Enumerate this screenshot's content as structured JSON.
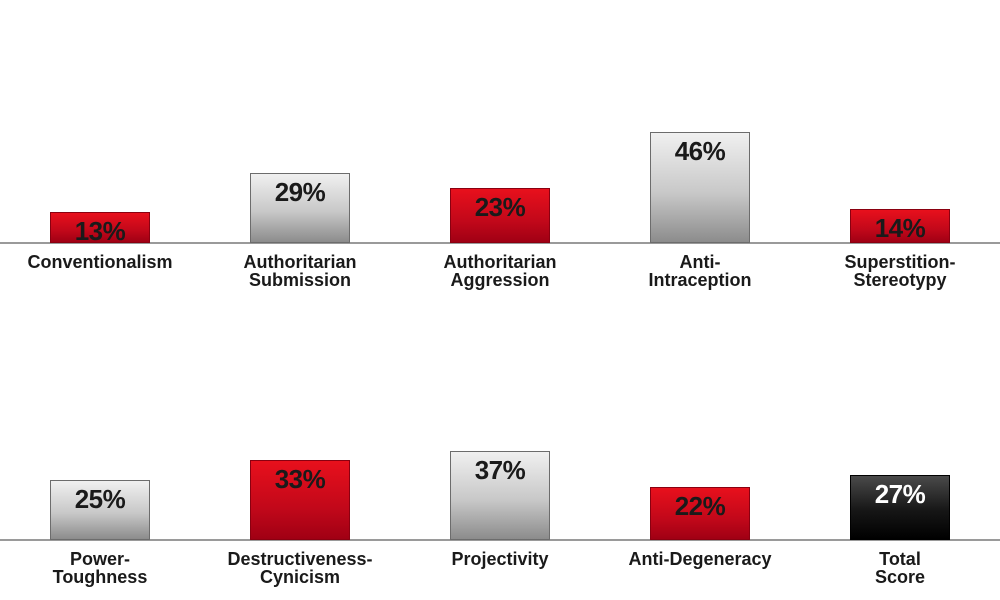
{
  "chart_data": [
    {
      "type": "bar",
      "categories": [
        "Conventionalism",
        "Authoritarian\nSubmission",
        "Authoritarian\nAggression",
        "Anti-\nIntraception",
        "Superstition-\nStereotypy"
      ],
      "values": [
        13,
        29,
        23,
        46,
        14
      ],
      "value_labels": [
        "13%",
        "29%",
        "23%",
        "46%",
        "14%"
      ],
      "bar_colors": [
        "red",
        "gray",
        "red",
        "gray",
        "red"
      ],
      "ylim": [
        0,
        50
      ],
      "grid": false
    },
    {
      "type": "bar",
      "categories": [
        "Power-\nToughness",
        "Destructiveness-\nCynicism",
        "Projectivity",
        "Anti-Degeneracy",
        "Total\nScore"
      ],
      "values": [
        25,
        33,
        37,
        22,
        27
      ],
      "value_labels": [
        "25%",
        "33%",
        "37%",
        "22%",
        "27%"
      ],
      "bar_colors": [
        "gray",
        "red",
        "gray",
        "red",
        "black"
      ],
      "ylim": [
        0,
        50
      ],
      "grid": false
    }
  ],
  "colors": {
    "red": "#d40a1a",
    "gray": "#bdbdbd",
    "black": "#0a0a0a",
    "axis": "#9a9a9a"
  }
}
